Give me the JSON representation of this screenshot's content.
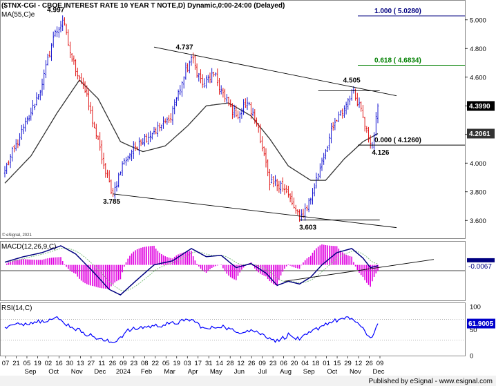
{
  "chart_data": {
    "type": "candlestick",
    "title": "($TNX-CGI - CBOE INTEREST RATE 10 YEAR T NOTE,D) Dynamic,0:00-24:00 (Delayed)",
    "ma_label": "MA(55,C)e",
    "copyright": "© eSignal, 2021",
    "footer": "Published by eSignal - www.esignal.com",
    "colors": {
      "up": "#0000cc",
      "down": "#dd0000",
      "ma": "#333333",
      "macd": "#000080",
      "signal": "#7fbf7f",
      "hist": "#e000e0",
      "rsi": "#0000ff",
      "fib_top": "#000080",
      "fib_mid": "#008000",
      "fib_low": "#000000",
      "price_badge": "#000000",
      "ma_badge": "#333333"
    },
    "price_axis": {
      "ylim": [
        3.5,
        5.1
      ],
      "ticks": [
        "5.000",
        "4.800",
        "4.600",
        "4.400",
        "4.200",
        "4.000",
        "3.800",
        "3.600"
      ]
    },
    "macd_axis": {
      "ylim": [
        -0.26,
        0.17
      ]
    },
    "rsi_axis": {
      "ylim": [
        0,
        100
      ],
      "ticks": [
        "100",
        "50",
        "0"
      ],
      "levels": [
        70,
        30
      ]
    },
    "x_tick_labels": [
      "07",
      "21",
      "05",
      "19",
      "02",
      "16",
      "30",
      "13",
      "27",
      "11",
      "26",
      "09",
      "23",
      "08",
      "22",
      "05",
      "19",
      "03",
      "17",
      "31",
      "14",
      "28",
      "12",
      "26",
      "09",
      "23",
      "06",
      "20",
      "04",
      "18",
      "01",
      "15",
      "29",
      "12",
      "26",
      "09"
    ],
    "month_labels": [
      "Sep",
      "Oct",
      "Nov",
      "Dec",
      "2024",
      "Feb",
      "Mar",
      "Apr",
      "May",
      "Jun",
      "Jul",
      "Aug",
      "Sep",
      "Oct",
      "Nov",
      "Dec"
    ],
    "anchors": [
      {
        "i": 0,
        "v": 3.95
      },
      {
        "i": 8,
        "v": 4.18
      },
      {
        "i": 14,
        "v": 4.35
      },
      {
        "i": 20,
        "v": 4.55
      },
      {
        "i": 26,
        "v": 4.88
      },
      {
        "i": 31,
        "v": 4.997
      },
      {
        "i": 36,
        "v": 4.72
      },
      {
        "i": 42,
        "v": 4.55
      },
      {
        "i": 48,
        "v": 4.25
      },
      {
        "i": 54,
        "v": 3.93
      },
      {
        "i": 58,
        "v": 3.785
      },
      {
        "i": 64,
        "v": 4.02
      },
      {
        "i": 72,
        "v": 4.15
      },
      {
        "i": 80,
        "v": 4.22
      },
      {
        "i": 88,
        "v": 4.3
      },
      {
        "i": 96,
        "v": 4.6
      },
      {
        "i": 100,
        "v": 4.737
      },
      {
        "i": 106,
        "v": 4.55
      },
      {
        "i": 112,
        "v": 4.62
      },
      {
        "i": 118,
        "v": 4.45
      },
      {
        "i": 124,
        "v": 4.33
      },
      {
        "i": 130,
        "v": 4.42
      },
      {
        "i": 136,
        "v": 4.25
      },
      {
        "i": 142,
        "v": 3.85
      },
      {
        "i": 148,
        "v": 3.86
      },
      {
        "i": 154,
        "v": 3.72
      },
      {
        "i": 158,
        "v": 3.603
      },
      {
        "i": 164,
        "v": 3.75
      },
      {
        "i": 170,
        "v": 4.02
      },
      {
        "i": 176,
        "v": 4.25
      },
      {
        "i": 182,
        "v": 4.38
      },
      {
        "i": 186,
        "v": 4.505
      },
      {
        "i": 190,
        "v": 4.42
      },
      {
        "i": 194,
        "v": 4.24
      },
      {
        "i": 197,
        "v": 4.126
      },
      {
        "i": 200,
        "v": 4.399
      }
    ],
    "ma_anchors": [
      {
        "i": 0,
        "v": 3.86
      },
      {
        "i": 14,
        "v": 4.05
      },
      {
        "i": 28,
        "v": 4.35
      },
      {
        "i": 40,
        "v": 4.58
      },
      {
        "i": 50,
        "v": 4.45
      },
      {
        "i": 62,
        "v": 4.15
      },
      {
        "i": 74,
        "v": 4.08
      },
      {
        "i": 86,
        "v": 4.12
      },
      {
        "i": 98,
        "v": 4.26
      },
      {
        "i": 108,
        "v": 4.4
      },
      {
        "i": 120,
        "v": 4.42
      },
      {
        "i": 132,
        "v": 4.33
      },
      {
        "i": 142,
        "v": 4.17
      },
      {
        "i": 152,
        "v": 3.98
      },
      {
        "i": 164,
        "v": 3.88
      },
      {
        "i": 172,
        "v": 3.88
      },
      {
        "i": 182,
        "v": 4.03
      },
      {
        "i": 192,
        "v": 4.15
      },
      {
        "i": 200,
        "v": 4.206
      }
    ],
    "swing_labels": [
      {
        "text": "4.997",
        "i": 31,
        "v": 4.997,
        "pos": "above-left"
      },
      {
        "text": "3.785",
        "i": 58,
        "v": 3.785,
        "pos": "below"
      },
      {
        "text": "4.737",
        "i": 100,
        "v": 4.737,
        "pos": "above-left"
      },
      {
        "text": "3.603",
        "i": 158,
        "v": 3.603,
        "pos": "below-right"
      },
      {
        "text": "4.505",
        "i": 186,
        "v": 4.505,
        "pos": "above"
      },
      {
        "text": "4.126",
        "i": 197,
        "v": 4.126,
        "pos": "below-right"
      }
    ],
    "fib_levels": [
      {
        "label": "1.000 ( 5.0280)",
        "value": 5.028,
        "color": "fib_top"
      },
      {
        "label": "0.618 ( 4.6834)",
        "value": 4.6834,
        "color": "fib_mid"
      },
      {
        "label": "0.000 ( 4.1260)",
        "value": 4.126,
        "color": "fib_low"
      }
    ],
    "trendlines": [
      {
        "i1": 80,
        "v1": 4.81,
        "i2": 210,
        "v2": 4.47
      },
      {
        "i1": 58,
        "v1": 3.785,
        "i2": 210,
        "v2": 3.55
      },
      {
        "i1": 168,
        "v1": 4.505,
        "i2": 201,
        "v2": 4.505
      },
      {
        "i1": 158,
        "v1": 3.603,
        "i2": 201,
        "v2": 3.603
      }
    ],
    "macd_label": "MACD(12,26,9,C)",
    "macd_value": "-0.0067",
    "macd_anchors": [
      {
        "i": 0,
        "v": 0.02
      },
      {
        "i": 10,
        "v": 0.06
      },
      {
        "i": 20,
        "v": 0.09
      },
      {
        "i": 30,
        "v": 0.14
      },
      {
        "i": 38,
        "v": 0.08
      },
      {
        "i": 48,
        "v": -0.06
      },
      {
        "i": 56,
        "v": -0.18
      },
      {
        "i": 62,
        "v": -0.22
      },
      {
        "i": 70,
        "v": -0.12
      },
      {
        "i": 80,
        "v": 0.0
      },
      {
        "i": 90,
        "v": 0.03
      },
      {
        "i": 100,
        "v": 0.12
      },
      {
        "i": 108,
        "v": 0.06
      },
      {
        "i": 116,
        "v": 0.07
      },
      {
        "i": 124,
        "v": -0.02
      },
      {
        "i": 132,
        "v": 0.01
      },
      {
        "i": 140,
        "v": -0.06
      },
      {
        "i": 146,
        "v": -0.15
      },
      {
        "i": 152,
        "v": -0.12
      },
      {
        "i": 158,
        "v": -0.14
      },
      {
        "i": 164,
        "v": -0.09
      },
      {
        "i": 170,
        "v": 0.0
      },
      {
        "i": 178,
        "v": 0.09
      },
      {
        "i": 186,
        "v": 0.12
      },
      {
        "i": 192,
        "v": 0.05
      },
      {
        "i": 196,
        "v": -0.02
      },
      {
        "i": 200,
        "v": -0.0067
      }
    ],
    "macd_trendline": {
      "i1": 150,
      "v1": -0.12,
      "i2": 230,
      "v2": 0.04
    },
    "rsi_label": "RSI(14,C)",
    "rsi_value": "61.9005",
    "rsi_anchors": [
      {
        "i": 0,
        "v": 55
      },
      {
        "i": 10,
        "v": 62
      },
      {
        "i": 20,
        "v": 68
      },
      {
        "i": 28,
        "v": 72
      },
      {
        "i": 36,
        "v": 55
      },
      {
        "i": 44,
        "v": 42
      },
      {
        "i": 52,
        "v": 30
      },
      {
        "i": 58,
        "v": 25
      },
      {
        "i": 66,
        "v": 48
      },
      {
        "i": 74,
        "v": 55
      },
      {
        "i": 82,
        "v": 58
      },
      {
        "i": 90,
        "v": 62
      },
      {
        "i": 100,
        "v": 70
      },
      {
        "i": 108,
        "v": 50
      },
      {
        "i": 116,
        "v": 58
      },
      {
        "i": 124,
        "v": 45
      },
      {
        "i": 132,
        "v": 50
      },
      {
        "i": 140,
        "v": 38
      },
      {
        "i": 146,
        "v": 28
      },
      {
        "i": 152,
        "v": 40
      },
      {
        "i": 158,
        "v": 30
      },
      {
        "i": 164,
        "v": 45
      },
      {
        "i": 172,
        "v": 62
      },
      {
        "i": 180,
        "v": 70
      },
      {
        "i": 186,
        "v": 72
      },
      {
        "i": 190,
        "v": 60
      },
      {
        "i": 194,
        "v": 40
      },
      {
        "i": 197,
        "v": 36
      },
      {
        "i": 200,
        "v": 61.9
      }
    ],
    "last_price": "4.3990",
    "ma_value": "4.2061"
  }
}
